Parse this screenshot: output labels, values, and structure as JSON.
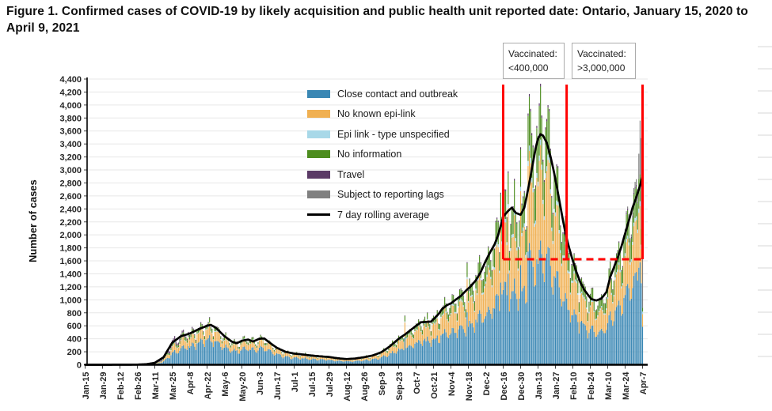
{
  "figure": {
    "title": "Figure 1. Confirmed cases of COVID-19 by likely acquisition and public health unit reported date: Ontario, January 15, 2020 to April 9, 2021"
  },
  "annotations": {
    "box1": {
      "line1": "Vaccinated:",
      "line2": "<400,000"
    },
    "box2": {
      "line1": "Vaccinated:",
      "line2": ">3,000,000"
    }
  },
  "chart_data": {
    "type": "stacked-bar-with-line",
    "title": "Confirmed cases of COVID-19 by likely acquisition and public health unit reported date",
    "xlabel": "",
    "ylabel": "Number of cases",
    "ylim": [
      0,
      4400
    ],
    "ytick_step": 200,
    "grid": "horizontal",
    "legend_position": "inside-top-left-of-plot",
    "x_tick_labels": [
      "Jan-15",
      "Jan-29",
      "Feb-12",
      "Feb-26",
      "Mar-11",
      "Mar-25",
      "Apr-8",
      "Apr-22",
      "May-6",
      "May-20",
      "Jun-3",
      "Jun-17",
      "Jul-1",
      "Jul-15",
      "Jul-29",
      "Aug-12",
      "Aug-26",
      "Sep-9",
      "Sep-23",
      "Oct-7",
      "Oct-21",
      "Nov-4",
      "Nov-18",
      "Dec-2",
      "Dec-16",
      "Dec-30",
      "Jan-13",
      "Jan-27",
      "Feb-10",
      "Feb-24",
      "Mar-10",
      "Mar-24",
      "Apr-7"
    ],
    "tick_interval_days": 14,
    "span_days": 448,
    "series": [
      {
        "label": "Close contact and outbreak",
        "color": "#3a87b4",
        "kind": "bar"
      },
      {
        "label": "No known epi-link",
        "color": "#f0b052",
        "kind": "bar"
      },
      {
        "label": "Epi link - type unspecified",
        "color": "#a8d8e8",
        "kind": "bar"
      },
      {
        "label": "No information",
        "color": "#4d8d1f",
        "kind": "bar"
      },
      {
        "label": "Travel",
        "color": "#5b3a66",
        "kind": "bar"
      },
      {
        "label": "Subject to reporting lags",
        "color": "#808080",
        "kind": "bar"
      },
      {
        "label": "7 day rolling average",
        "color": "#000000",
        "kind": "line"
      }
    ],
    "rolling_average": [
      [
        0,
        0
      ],
      [
        35,
        1
      ],
      [
        42,
        3
      ],
      [
        49,
        8
      ],
      [
        56,
        30
      ],
      [
        63,
        115
      ],
      [
        70,
        340
      ],
      [
        77,
        440
      ],
      [
        84,
        480
      ],
      [
        91,
        545
      ],
      [
        98,
        600
      ],
      [
        101,
        615
      ],
      [
        105,
        570
      ],
      [
        112,
        440
      ],
      [
        118,
        355
      ],
      [
        122,
        332
      ],
      [
        126,
        370
      ],
      [
        131,
        388
      ],
      [
        135,
        358
      ],
      [
        140,
        400
      ],
      [
        144,
        405
      ],
      [
        148,
        345
      ],
      [
        154,
        262
      ],
      [
        161,
        200
      ],
      [
        168,
        172
      ],
      [
        175,
        158
      ],
      [
        182,
        142
      ],
      [
        189,
        130
      ],
      [
        196,
        120
      ],
      [
        203,
        100
      ],
      [
        210,
        88
      ],
      [
        217,
        96
      ],
      [
        224,
        116
      ],
      [
        231,
        142
      ],
      [
        238,
        192
      ],
      [
        245,
        285
      ],
      [
        252,
        400
      ],
      [
        258,
        480
      ],
      [
        262,
        540
      ],
      [
        266,
        600
      ],
      [
        270,
        655
      ],
      [
        274,
        660
      ],
      [
        278,
        665
      ],
      [
        281,
        720
      ],
      [
        284,
        780
      ],
      [
        287,
        860
      ],
      [
        291,
        920
      ],
      [
        294,
        945
      ],
      [
        298,
        1005
      ],
      [
        302,
        1060
      ],
      [
        306,
        1140
      ],
      [
        310,
        1210
      ],
      [
        314,
        1300
      ],
      [
        318,
        1430
      ],
      [
        322,
        1600
      ],
      [
        326,
        1750
      ],
      [
        329,
        1850
      ],
      [
        332,
        2000
      ],
      [
        336,
        2280
      ],
      [
        340,
        2370
      ],
      [
        343,
        2420
      ],
      [
        346,
        2340
      ],
      [
        350,
        2310
      ],
      [
        353,
        2420
      ],
      [
        356,
        2700
      ],
      [
        359,
        3010
      ],
      [
        362,
        3330
      ],
      [
        364,
        3480
      ],
      [
        366,
        3550
      ],
      [
        368,
        3530
      ],
      [
        371,
        3420
      ],
      [
        374,
        3210
      ],
      [
        377,
        2950
      ],
      [
        380,
        2650
      ],
      [
        383,
        2330
      ],
      [
        386,
        2030
      ],
      [
        389,
        1800
      ],
      [
        392,
        1600
      ],
      [
        395,
        1420
      ],
      [
        398,
        1270
      ],
      [
        401,
        1160
      ],
      [
        404,
        1080
      ],
      [
        407,
        1010
      ],
      [
        411,
        990
      ],
      [
        415,
        1020
      ],
      [
        419,
        1120
      ],
      [
        422,
        1350
      ],
      [
        425,
        1500
      ],
      [
        428,
        1650
      ],
      [
        431,
        1820
      ],
      [
        434,
        2020
      ],
      [
        437,
        2220
      ],
      [
        440,
        2420
      ],
      [
        443,
        2580
      ],
      [
        446,
        2760
      ],
      [
        448,
        2900
      ]
    ],
    "composition": [
      [
        0,
        [
          0.2,
          0.05,
          0.0,
          0.05,
          0.7,
          0
        ]
      ],
      [
        55,
        [
          0.3,
          0.12,
          0.01,
          0.07,
          0.5,
          0
        ]
      ],
      [
        63,
        [
          0.42,
          0.2,
          0.01,
          0.09,
          0.28,
          0
        ]
      ],
      [
        70,
        [
          0.5,
          0.24,
          0.02,
          0.1,
          0.14,
          0
        ]
      ],
      [
        80,
        [
          0.56,
          0.26,
          0.02,
          0.1,
          0.06,
          0
        ]
      ],
      [
        95,
        [
          0.62,
          0.25,
          0.02,
          0.09,
          0.02,
          0
        ]
      ],
      [
        150,
        [
          0.63,
          0.26,
          0.02,
          0.08,
          0.01,
          0
        ]
      ],
      [
        210,
        [
          0.6,
          0.29,
          0.02,
          0.08,
          0.01,
          0
        ]
      ],
      [
        250,
        [
          0.56,
          0.3,
          0.02,
          0.11,
          0.01,
          0
        ]
      ],
      [
        300,
        [
          0.52,
          0.32,
          0.02,
          0.13,
          0.01,
          0
        ]
      ],
      [
        340,
        [
          0.47,
          0.34,
          0.02,
          0.16,
          0.01,
          0
        ]
      ],
      [
        365,
        [
          0.44,
          0.34,
          0.02,
          0.19,
          0.01,
          0
        ]
      ],
      [
        395,
        [
          0.5,
          0.32,
          0.02,
          0.15,
          0.01,
          0
        ]
      ],
      [
        430,
        [
          0.52,
          0.29,
          0.02,
          0.16,
          0.01,
          0
        ]
      ],
      [
        443,
        [
          0.5,
          0.28,
          0.02,
          0.16,
          0.01,
          0.03
        ]
      ],
      [
        445,
        [
          0.46,
          0.26,
          0.02,
          0.14,
          0.0,
          0.12
        ]
      ],
      [
        446,
        [
          0.42,
          0.23,
          0.02,
          0.11,
          0.0,
          0.22
        ]
      ],
      [
        447,
        [
          0.36,
          0.15,
          0.02,
          0.07,
          0.0,
          0.4
        ]
      ],
      [
        448,
        [
          0.3,
          0.1,
          0.02,
          0.03,
          0.0,
          0.55
        ]
      ]
    ],
    "weekday_factors": [
      1.04,
      1.1,
      1.12,
      1.02,
      0.88,
      0.8,
      0.98
    ],
    "jitter": 0.09,
    "spike_bars": [
      {
        "day": 99,
        "total": 660
      },
      {
        "day": 257,
        "total": 760
      },
      {
        "day": 307,
        "total": 1580
      },
      {
        "day": 334,
        "total": 2650
      },
      {
        "day": 340,
        "total": 2980
      },
      {
        "day": 350,
        "total": 3350
      },
      {
        "day": 356,
        "total": 3870
      },
      {
        "day": 357,
        "total": 4170
      },
      {
        "day": 358,
        "total": 3940
      },
      {
        "day": 363,
        "total": 3680
      },
      {
        "day": 364,
        "total": 3520
      },
      {
        "day": 445,
        "total": 3250
      },
      {
        "day": 446,
        "total": 3760
      },
      {
        "day": 447,
        "total": 3490
      },
      {
        "day": 448,
        "total": 1950
      }
    ],
    "annotations": {
      "color": "#ff0000",
      "red_vlines_days": [
        336,
        387,
        448
      ],
      "vline_top_value": 4315,
      "dashed_value": 1625,
      "dashed_span_days": [
        336,
        448
      ]
    }
  }
}
